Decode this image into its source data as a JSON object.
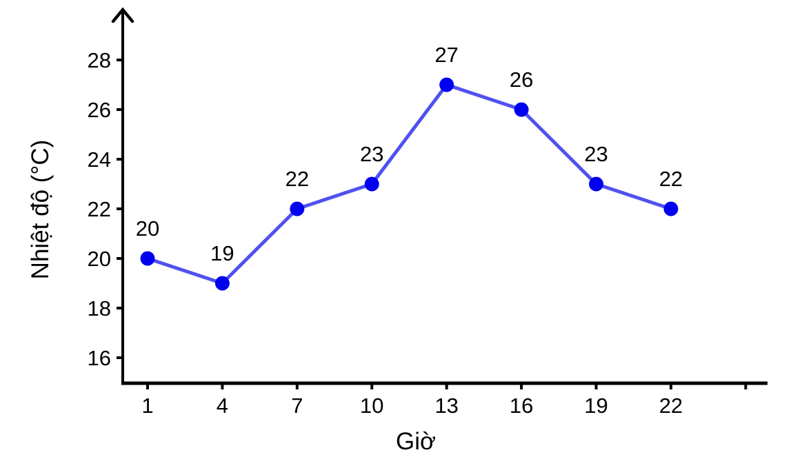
{
  "chart_data": {
    "type": "line",
    "title": "",
    "xlabel": "Giờ",
    "ylabel": "Nhiệt độ (°C)",
    "x": [
      1,
      4,
      7,
      10,
      13,
      16,
      19,
      22
    ],
    "series": [
      {
        "name": "Nhiệt độ",
        "values": [
          20,
          19,
          22,
          23,
          27,
          26,
          23,
          22
        ]
      }
    ],
    "point_labels": [
      "20",
      "19",
      "22",
      "23",
      "27",
      "26",
      "23",
      "22"
    ],
    "x_tick_labels": [
      "1",
      "4",
      "7",
      "10",
      "13",
      "16",
      "19",
      "22"
    ],
    "x_extra_unlabeled_tick": 25,
    "y_ticks": [
      16,
      18,
      20,
      22,
      24,
      26,
      28
    ],
    "y_tick_labels": [
      "16",
      "18",
      "20",
      "22",
      "24",
      "26",
      "28"
    ],
    "xlim": [
      0,
      25.9
    ],
    "ylim": [
      15,
      29.1
    ],
    "grid": false,
    "legend": "none",
    "y_axis_arrow": true,
    "x_axis_arrow": false,
    "marker": "circle",
    "colors": {
      "line": "#5050f0",
      "marker": "#0000f0",
      "axis": "#000000",
      "text": "#000000",
      "background": "#ffffff"
    }
  }
}
